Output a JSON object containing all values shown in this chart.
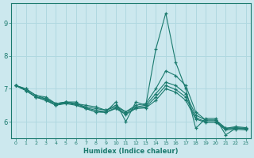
{
  "xlabel": "Humidex (Indice chaleur)",
  "background_color": "#cce8ee",
  "grid_color": "#b0d8e0",
  "line_color": "#1a7a6e",
  "x_values": [
    0,
    1,
    2,
    3,
    4,
    5,
    6,
    7,
    8,
    9,
    10,
    11,
    12,
    13,
    14,
    15,
    16,
    17,
    18,
    19,
    20,
    21,
    22,
    23
  ],
  "series": [
    [
      7.1,
      7.0,
      6.8,
      6.7,
      6.5,
      6.6,
      6.6,
      6.4,
      6.3,
      6.3,
      6.6,
      6.0,
      6.6,
      6.5,
      8.2,
      9.3,
      7.8,
      7.0,
      5.8,
      6.1,
      6.1,
      5.6,
      5.8,
      5.8
    ],
    [
      7.1,
      7.0,
      6.8,
      6.75,
      6.55,
      6.6,
      6.55,
      6.5,
      6.45,
      6.35,
      6.5,
      6.3,
      6.5,
      6.55,
      7.0,
      7.55,
      7.4,
      7.1,
      6.3,
      6.05,
      6.05,
      5.8,
      5.85,
      5.82
    ],
    [
      7.1,
      6.95,
      6.75,
      6.7,
      6.55,
      6.6,
      6.55,
      6.45,
      6.4,
      6.35,
      6.45,
      6.3,
      6.45,
      6.5,
      6.85,
      7.2,
      7.1,
      6.85,
      6.2,
      6.05,
      6.05,
      5.8,
      5.82,
      5.8
    ],
    [
      7.1,
      6.95,
      6.75,
      6.65,
      6.5,
      6.58,
      6.52,
      6.42,
      6.35,
      6.3,
      6.42,
      6.25,
      6.42,
      6.45,
      6.75,
      7.1,
      6.98,
      6.75,
      6.12,
      6.0,
      6.0,
      5.78,
      5.8,
      5.78
    ],
    [
      7.1,
      6.95,
      6.75,
      6.65,
      6.5,
      6.55,
      6.5,
      6.4,
      6.3,
      6.28,
      6.4,
      6.22,
      6.4,
      6.42,
      6.65,
      7.0,
      6.9,
      6.65,
      6.08,
      5.98,
      5.98,
      5.75,
      5.77,
      5.75
    ]
  ],
  "ylim": [
    5.5,
    9.6
  ],
  "yticks": [
    6,
    7,
    8,
    9
  ],
  "xticks": [
    0,
    1,
    2,
    3,
    4,
    5,
    6,
    7,
    8,
    9,
    10,
    11,
    12,
    13,
    14,
    15,
    16,
    17,
    18,
    19,
    20,
    21,
    22,
    23
  ],
  "figsize": [
    3.2,
    2.0
  ],
  "dpi": 100
}
